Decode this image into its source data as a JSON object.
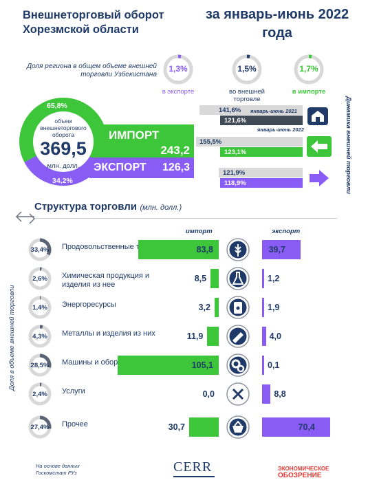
{
  "title": "Внешнеторговый оборот Хорезмской области",
  "period": "за январь-июнь 2022 года",
  "share": {
    "label": "Доля региона в общем объеме внешней торговли Узбекистана",
    "items": [
      {
        "value": "1,3%",
        "caption": "в экспорте",
        "color": "#8a5cf6",
        "fraction": 0.013
      },
      {
        "value": "1,5%",
        "caption": "во внешней торговле",
        "color": "#1f3a68",
        "fraction": 0.015
      },
      {
        "value": "1,7%",
        "caption": "в импорте",
        "color": "#3ec63a",
        "fraction": 0.017
      }
    ]
  },
  "turnover": {
    "import_pct": "65,8%",
    "export_pct": "34,2%",
    "label": "объем внешнеторгового оборота",
    "value": "369,5",
    "unit": "млн. долл."
  },
  "import_box": {
    "label": "ИМПОРТ",
    "value": "243,2"
  },
  "export_box": {
    "label": "ЭКСПОРТ",
    "value": "126,3"
  },
  "dynamics": {
    "title": "Динамика внешней торговли",
    "total": {
      "y2021": "141,6%",
      "y2022": "121,6%"
    },
    "import": {
      "y2021": "155,5%",
      "y2022": "123,1%"
    },
    "export": {
      "y2021": "121,9%",
      "y2022": "118,9%"
    },
    "legend_2021": "январь-июнь 2021",
    "legend_2022": "январь-июнь 2022"
  },
  "structure": {
    "title": "Структура торговли",
    "unit": "(млн. долл.)",
    "import_head": "импорт",
    "export_head": "экспорт",
    "side_label": "Доля в объеме внешней торговли"
  },
  "chart_data": {
    "type": "bar",
    "title": "Структура торговли",
    "categories": [
      "Продовольственные товары",
      "Химическая продукция и изделия из нее",
      "Энергоресурсы",
      "Металлы и изделия из них",
      "Машины и оборудование",
      "Услуги",
      "Прочее"
    ],
    "shares": [
      "33,4%",
      "2,6%",
      "1,4%",
      "4,3%",
      "28,5%",
      "2,4%",
      "27,4%"
    ],
    "share_values": [
      33.4,
      2.6,
      1.4,
      4.3,
      28.5,
      2.4,
      27.4
    ],
    "series": [
      {
        "name": "импорт",
        "color": "#3ec63a",
        "values": [
          83.8,
          8.5,
          3.2,
          11.9,
          105.1,
          0.0,
          30.7
        ],
        "labels": [
          "83,8",
          "8,5",
          "3,2",
          "11,9",
          "105,1",
          "0,0",
          "30,7"
        ]
      },
      {
        "name": "экспорт",
        "color": "#8a5cf6",
        "values": [
          39.7,
          1.2,
          1.9,
          4.0,
          0.1,
          8.8,
          70.4
        ],
        "labels": [
          "39,7",
          "1,2",
          "1,9",
          "4,0",
          "0,1",
          "8,8",
          "70,4"
        ]
      }
    ]
  },
  "icons": [
    "wheat-icon",
    "flask-icon",
    "oil-barrel-icon",
    "metal-beam-icon",
    "gears-icon",
    "tools-icon",
    "basket-icon"
  ],
  "footer": {
    "source": "На основе данных Госкомстат РУз",
    "cerr": "CERR",
    "journal_line1": "ЭКОНОМИЧЕСКОЕ",
    "journal_line2": "ОБОЗРЕНИЕ"
  }
}
